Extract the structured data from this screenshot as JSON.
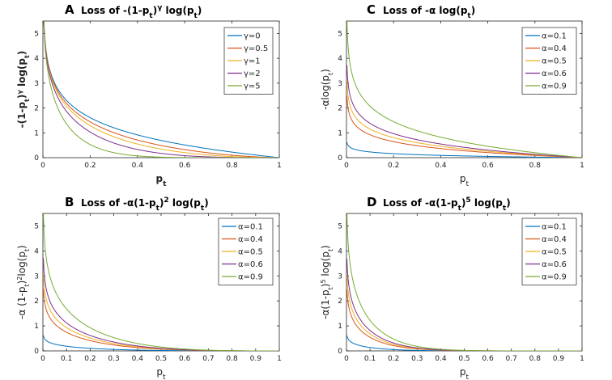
{
  "chart_data": [
    {
      "id": "A",
      "type": "line",
      "letter": "A",
      "title": "Loss of -(1-p_t)^γ log(p_t)",
      "title_parts": {
        "prefix": "Loss of -(1-p",
        "sub1": "t",
        "mid": ")",
        "sup": "γ",
        "after": " log(p",
        "sub2": "t",
        "suffix": ")"
      },
      "xlabel": {
        "main": "p",
        "sub": "t",
        "bold": true
      },
      "ylabel": "-(1-p_t)^γ log(p_t)",
      "ylabel_parts": {
        "prefix": "-(1-p",
        "sub1": "t",
        "mid": ")",
        "sup": "γ",
        "after": " log(p",
        "sub2": "t",
        "suffix": ")"
      },
      "xlim": [
        0,
        1
      ],
      "ylim": [
        0,
        5.5
      ],
      "xticks": [
        0,
        0.2,
        0.4,
        0.6,
        0.8,
        1
      ],
      "xtick_labels": [
        "0",
        "0.2",
        "0.4",
        "0.6",
        "0.8",
        "1"
      ],
      "yticks": [
        0,
        1,
        2,
        3,
        4,
        5
      ],
      "ytick_labels": [
        "0",
        "1",
        "2",
        "3",
        "4",
        "5"
      ],
      "formula": "focal",
      "legend_position": "top-right",
      "series": [
        {
          "name": "γ=0",
          "label": "γ=0",
          "param": 0,
          "color": "#0072BD"
        },
        {
          "name": "γ=0.5",
          "label": "γ=0.5",
          "param": 0.5,
          "color": "#D95319"
        },
        {
          "name": "γ=1",
          "label": "γ=1",
          "param": 1,
          "color": "#EDB120"
        },
        {
          "name": "γ=2",
          "label": "γ=2",
          "param": 2,
          "color": "#7E2F8E"
        },
        {
          "name": "γ=5",
          "label": "γ=5",
          "param": 5,
          "color": "#77AC30"
        }
      ]
    },
    {
      "id": "C",
      "type": "line",
      "letter": "C",
      "title": "Loss of -α log(p_t)",
      "title_parts": {
        "prefix": "Loss of -α log(p",
        "sub1": "t",
        "suffix": ")"
      },
      "xlabel": {
        "main": "p",
        "sub": "t",
        "bold": false
      },
      "ylabel": "-α log(p_t)",
      "ylabel_parts": {
        "prefix": "-αlog(p",
        "sub1": "t",
        "suffix": ")"
      },
      "xlim": [
        0,
        1
      ],
      "ylim": [
        0,
        5.5
      ],
      "xticks": [
        0,
        0.2,
        0.4,
        0.6,
        0.8,
        1
      ],
      "xtick_labels": [
        "0",
        "0.2",
        "0.4",
        "0.6",
        "0.8",
        "1"
      ],
      "yticks": [
        0,
        1,
        2,
        3,
        4,
        5
      ],
      "ytick_labels": [
        "0",
        "1",
        "2",
        "3",
        "4",
        "5"
      ],
      "formula": "alpha",
      "gamma": 0,
      "legend_position": "top-right",
      "series": [
        {
          "name": "α=0.1",
          "label": "α=0.1",
          "param": 0.1,
          "color": "#0072BD"
        },
        {
          "name": "α=0.4",
          "label": "α=0.4",
          "param": 0.4,
          "color": "#D95319"
        },
        {
          "name": "α=0.5",
          "label": "α=0.5",
          "param": 0.5,
          "color": "#EDB120"
        },
        {
          "name": "α=0.6",
          "label": "α=0.6",
          "param": 0.6,
          "color": "#7E2F8E"
        },
        {
          "name": "α=0.9",
          "label": "α=0.9",
          "param": 0.9,
          "color": "#77AC30"
        }
      ]
    },
    {
      "id": "B",
      "type": "line",
      "letter": "B",
      "title": "Loss of -α(1-p_t)^2 log(p_t)",
      "title_parts": {
        "prefix": "Loss of -α(1-p",
        "sub1": "t",
        "mid": ")",
        "sup": "2",
        "after": " log(p",
        "sub2": "t",
        "suffix": ")"
      },
      "xlabel": {
        "main": "p",
        "sub": "t",
        "bold": false
      },
      "ylabel": "-α (1-p_t)^2 log(p_t)",
      "ylabel_parts": {
        "prefix": "-α (1-p",
        "sub1": "t",
        "mid": ")",
        "sup": "2",
        "after": "log(p",
        "sub2": "t",
        "suffix": ")"
      },
      "xlim": [
        0,
        1
      ],
      "ylim": [
        0,
        5.5
      ],
      "xticks": [
        0,
        0.1,
        0.2,
        0.3,
        0.4,
        0.5,
        0.6,
        0.7,
        0.8,
        0.9,
        1
      ],
      "xtick_labels": [
        "0",
        "0.1",
        "0.2",
        "0.3",
        "0.4",
        "0.5",
        "0.6",
        "0.7",
        "0.8",
        "0.9",
        "1"
      ],
      "yticks": [
        0,
        1,
        2,
        3,
        4,
        5
      ],
      "ytick_labels": [
        "0",
        "1",
        "2",
        "3",
        "4",
        "5"
      ],
      "formula": "alpha",
      "gamma": 2,
      "legend_position": "top-right",
      "series": [
        {
          "name": "α=0.1",
          "label": "α=0.1",
          "param": 0.1,
          "color": "#0072BD"
        },
        {
          "name": "α=0.4",
          "label": "α=0.4",
          "param": 0.4,
          "color": "#D95319"
        },
        {
          "name": "α=0.5",
          "label": "α=0.5",
          "param": 0.5,
          "color": "#EDB120"
        },
        {
          "name": "α=0.6",
          "label": "α=0.6",
          "param": 0.6,
          "color": "#7E2F8E"
        },
        {
          "name": "α=0.9",
          "label": "α=0.9",
          "param": 0.9,
          "color": "#77AC30"
        }
      ]
    },
    {
      "id": "D",
      "type": "line",
      "letter": "D",
      "title": "Loss of -α(1-p_t)^5 log(p_t)",
      "title_parts": {
        "prefix": "Loss of -α(1-p",
        "sub1": "t",
        "mid": ")",
        "sup": "5",
        "after": " log(p",
        "sub2": "t",
        "suffix": ")"
      },
      "xlabel": {
        "main": "p",
        "sub": "t",
        "bold": false
      },
      "ylabel": "-α(1-p_t)^5 log(p_t)",
      "ylabel_parts": {
        "prefix": "-α(1-p",
        "sub1": "t",
        "mid": ")",
        "sup": "5",
        "after": " log(p",
        "sub2": "t",
        "suffix": ")"
      },
      "xlim": [
        0,
        1
      ],
      "ylim": [
        0,
        5.5
      ],
      "xticks": [
        0,
        0.1,
        0.2,
        0.3,
        0.4,
        0.5,
        0.6,
        0.7,
        0.8,
        0.9,
        1
      ],
      "xtick_labels": [
        "0",
        "0.1",
        "0.2",
        "0.3",
        "0.4",
        "0.5",
        "0.6",
        "0.7",
        "0.8",
        "0.9",
        "1"
      ],
      "yticks": [
        0,
        1,
        2,
        3,
        4,
        5
      ],
      "ytick_labels": [
        "0",
        "1",
        "2",
        "3",
        "4",
        "5"
      ],
      "formula": "alpha",
      "gamma": 5,
      "legend_position": "top-right",
      "series": [
        {
          "name": "α=0.1",
          "label": "α=0.1",
          "param": 0.1,
          "color": "#0072BD"
        },
        {
          "name": "α=0.4",
          "label": "α=0.4",
          "param": 0.4,
          "color": "#D95319"
        },
        {
          "name": "α=0.5",
          "label": "α=0.5",
          "param": 0.5,
          "color": "#EDB120"
        },
        {
          "name": "α=0.6",
          "label": "α=0.6",
          "param": 0.6,
          "color": "#7E2F8E"
        },
        {
          "name": "α=0.9",
          "label": "α=0.9",
          "param": 0.9,
          "color": "#77AC30"
        }
      ]
    }
  ]
}
